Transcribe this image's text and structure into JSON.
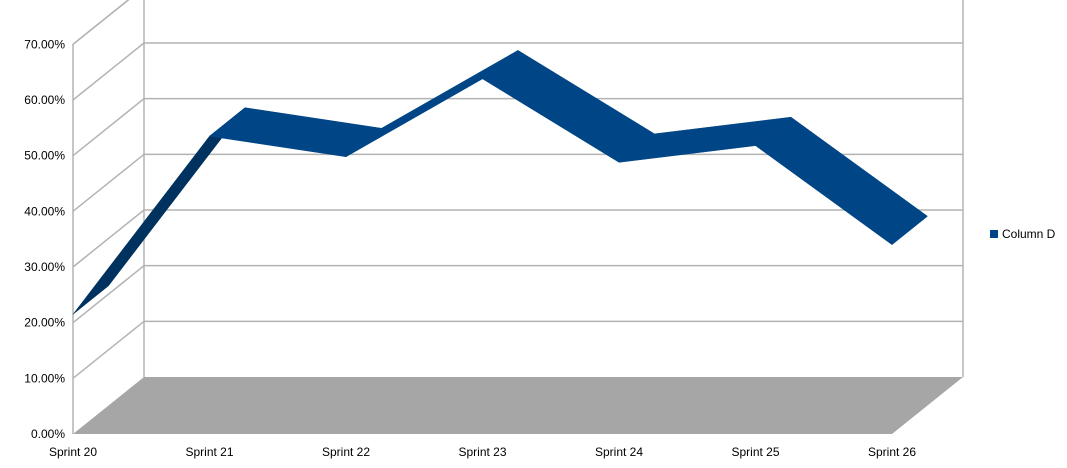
{
  "chart_data": {
    "type": "line",
    "style": "3d-ribbon",
    "title": "",
    "xlabel": "",
    "ylabel": "",
    "categories": [
      "Sprint 20",
      "Sprint 21",
      "Sprint 22",
      "Sprint 23",
      "Sprint 24",
      "Sprint 25",
      "Sprint 26"
    ],
    "series": [
      {
        "name": "Column D",
        "values": [
          21.5,
          53.5,
          49.8,
          63.8,
          48.8,
          51.8,
          34.0
        ]
      }
    ],
    "ylim": [
      0,
      70
    ],
    "y_tick_labels": [
      "0.00%",
      "10.00%",
      "20.00%",
      "30.00%",
      "40.00%",
      "50.00%",
      "60.00%",
      "70.00%"
    ],
    "grid": true,
    "legend_position": "right",
    "colors": {
      "series": "#004586",
      "series_top": "#00325f",
      "floor": "#a6a6a6",
      "grid": "#b3b3b3"
    }
  }
}
